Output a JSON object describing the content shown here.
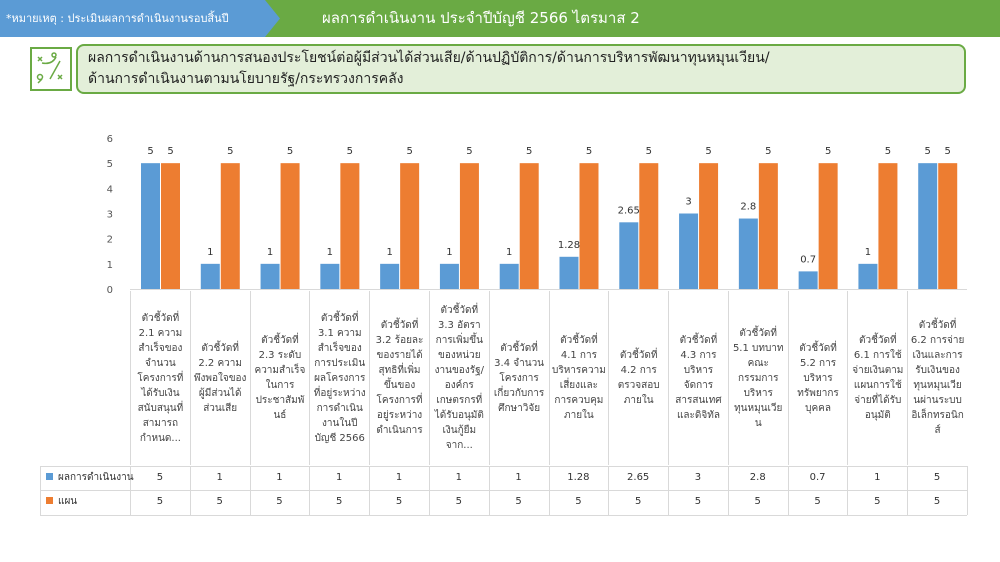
{
  "header": {
    "note": "*หมายเหตุ : ประเมินผลการดำเนินงานรอบสิ้นปี",
    "title": "ผลการดำเนินงาน ประจำปีบัญชี 2566 ไตรมาส 2"
  },
  "subtitle": {
    "line1": "ผลการดำเนินงานด้านการสนองประโยชน์ต่อผู้มีส่วนได้ส่วนเสีย/ด้านปฏิบัติการ/ด้านการบริหารพัฒนาทุนหมุนเวียน/",
    "line2": "ด้านการดำเนินงานตามนโยบายรัฐ/กระทรวงการคลัง"
  },
  "colors": {
    "actual": "#5b9bd5",
    "plan": "#ed7d31",
    "green": "#6aaa44"
  },
  "chart_data": {
    "type": "bar",
    "ylim": [
      0,
      6
    ],
    "yticks": [
      0,
      1,
      2,
      3,
      4,
      5,
      6
    ],
    "grid": false,
    "legend": "table-left",
    "categories": [
      "ตัวชี้วัดที่ 2.1 ความสำเร็จของจำนวนโครงการที่ได้รับเงินสนับสนุนที่สามารถกำหนด...",
      "ตัวชี้วัดที่ 2.2 ความพึงพอใจของผู้มีส่วนได้ส่วนเสีย",
      "ตัวชี้วัดที่ 2.3 ระดับความสำเร็จในการประชาสัมพันธ์",
      "ตัวชี้วัดที่ 3.1 ความสำเร็จของการประเมินผลโครงการที่อยู่ระหว่างการดำเนินงานในปีบัญชี 2566",
      "ตัวชี้วัดที่ 3.2 ร้อยละของรายได้สุทธิที่เพิ่มขึ้นของโครงการที่อยู่ระหว่างดำเนินการ",
      "ตัวชี้วัดที่ 3.3 อัตราการเพิ่มขึ้นของหน่วยงานของรัฐ/องค์กรเกษตรกรที่ได้รับอนุมัติเงินกู้ยืมจาก...",
      "ตัวชี้วัดที่ 3.4 จำนวนโครงการเกี่ยวกับการศึกษาวิจัย",
      "ตัวชี้วัดที่ 4.1 การบริหารความเสี่ยงและการควบคุมภายใน",
      "ตัวชี้วัดที่ 4.2 การตรวจสอบภายใน",
      "ตัวชี้วัดที่ 4.3 การบริหารจัดการสารสนเทศและดิจิทัล",
      "ตัวชี้วัดที่ 5.1 บทบาทคณะกรรมการบริหารทุนหมุนเวียน",
      "ตัวชี้วัดที่ 5.2 การบริหารทรัพยากรบุคคล",
      "ตัวชี้วัดที่ 6.1 การใช้จ่ายเงินตามแผนการใช้จ่ายที่ได้รับอนุมัติ",
      "ตัวชี้วัดที่ 6.2 การจ่ายเงินและการรับเงินของทุนหมุนเวียนผ่านระบบอิเล็กทรอนิกส์"
    ],
    "series": [
      {
        "name": "ผลการดำเนินงาน",
        "values": [
          5,
          1,
          1,
          1,
          1,
          1,
          1,
          1.28,
          2.65,
          3,
          2.8,
          0.7,
          1,
          5
        ],
        "labels": [
          "5",
          "1",
          "1",
          "1",
          "1",
          "1",
          "1",
          "1.28",
          "2.65",
          "3",
          "2.8",
          "0.7",
          "1",
          "5"
        ],
        "show_data_label": [
          true,
          true,
          true,
          true,
          true,
          true,
          true,
          true,
          true,
          true,
          true,
          true,
          true,
          true
        ]
      },
      {
        "name": "แผน",
        "values": [
          5,
          5,
          5,
          5,
          5,
          5,
          5,
          5,
          5,
          5,
          5,
          5,
          5,
          5
        ],
        "labels": [
          "5",
          "5",
          "5",
          "5",
          "5",
          "5",
          "5",
          "5",
          "5",
          "5",
          "5",
          "5",
          "5",
          "5"
        ]
      }
    ]
  }
}
